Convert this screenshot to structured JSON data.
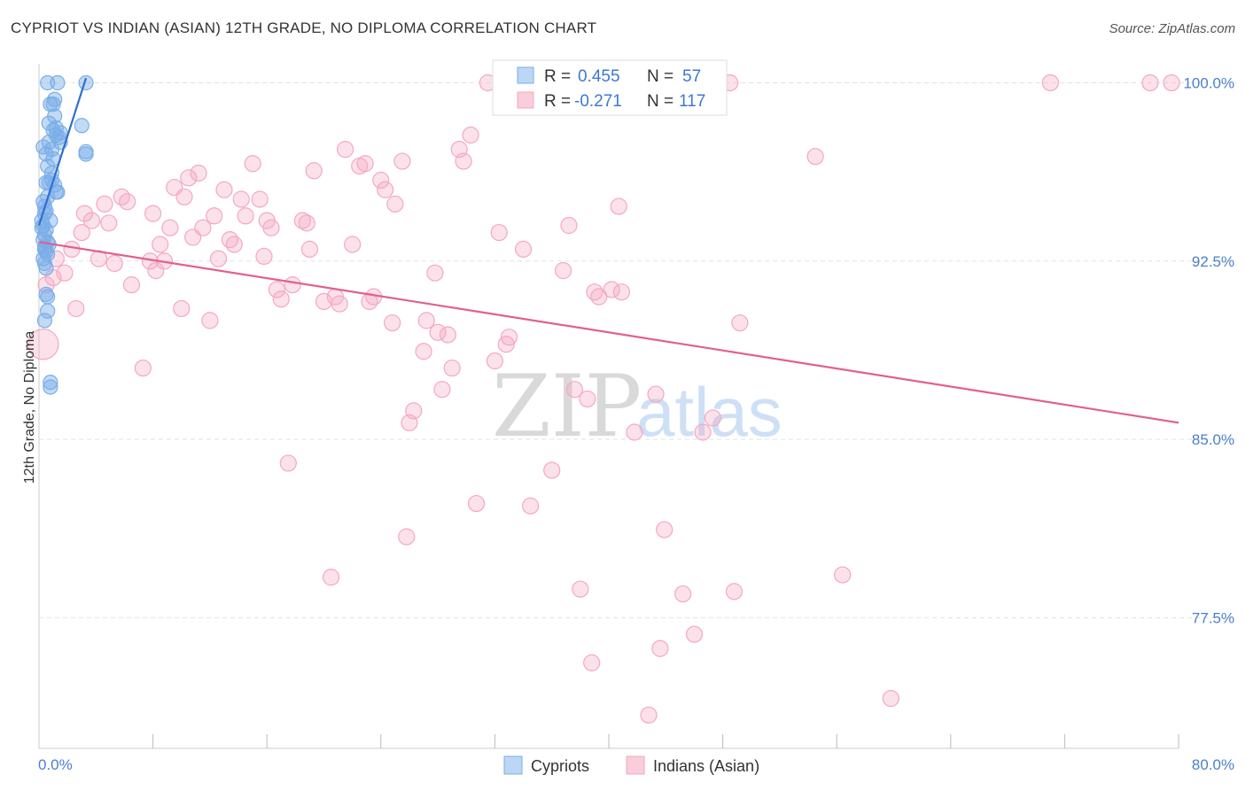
{
  "title": "CYPRIOT VS INDIAN (ASIAN) 12TH GRADE, NO DIPLOMA CORRELATION CHART",
  "source": "Source: ZipAtlas.com",
  "watermark": {
    "zip": "ZIP",
    "atlas": "atlas"
  },
  "chart_data": {
    "type": "scatter",
    "title": "CYPRIOT VS INDIAN (ASIAN) 12TH GRADE, NO DIPLOMA CORRELATION CHART",
    "xlabel": "",
    "ylabel": "12th Grade, No Diploma",
    "xlim": [
      0,
      80
    ],
    "ylim": [
      72,
      100.8
    ],
    "x_tick_labels": {
      "left": "0.0%",
      "right": "80.0%"
    },
    "y_ticks": [
      {
        "value": 100.0,
        "label": "100.0%"
      },
      {
        "value": 92.5,
        "label": "92.5%"
      },
      {
        "value": 85.0,
        "label": "85.0%"
      },
      {
        "value": 77.5,
        "label": "77.5%"
      }
    ],
    "grid": true,
    "legend_placement": "top-center",
    "series": [
      {
        "name": "Cypriots",
        "color": "#7aaee8",
        "line_color": "#2f6fd0",
        "r_label": "R =",
        "r_value": "0.455",
        "n_label": "N =",
        "n_value": "57",
        "trend": {
          "x": [
            0.0,
            3.3
          ],
          "y": [
            94.0,
            100.2
          ]
        },
        "points": [
          [
            0.6,
            100.0
          ],
          [
            1.3,
            100.0
          ],
          [
            3.3,
            100.0
          ],
          [
            0.8,
            99.1
          ],
          [
            1.0,
            99.1
          ],
          [
            1.1,
            98.6
          ],
          [
            3.0,
            98.2
          ],
          [
            1.0,
            98.0
          ],
          [
            1.2,
            97.8
          ],
          [
            1.4,
            97.7
          ],
          [
            0.7,
            97.5
          ],
          [
            1.5,
            97.5
          ],
          [
            0.9,
            97.2
          ],
          [
            0.5,
            97.0
          ],
          [
            3.3,
            97.1
          ],
          [
            3.3,
            97.0
          ],
          [
            0.6,
            96.5
          ],
          [
            0.9,
            96.2
          ],
          [
            0.5,
            95.8
          ],
          [
            0.7,
            95.8
          ],
          [
            1.1,
            95.7
          ],
          [
            1.2,
            95.4
          ],
          [
            1.3,
            95.4
          ],
          [
            0.3,
            95.0
          ],
          [
            0.5,
            94.6
          ],
          [
            0.4,
            94.5
          ],
          [
            0.2,
            94.2
          ],
          [
            0.3,
            94.0
          ],
          [
            0.5,
            93.8
          ],
          [
            0.4,
            93.6
          ],
          [
            0.3,
            93.4
          ],
          [
            0.6,
            93.3
          ],
          [
            0.4,
            93.1
          ],
          [
            0.6,
            92.8
          ],
          [
            0.3,
            92.6
          ],
          [
            0.4,
            92.4
          ],
          [
            0.5,
            92.2
          ],
          [
            0.5,
            91.1
          ],
          [
            0.6,
            91.0
          ],
          [
            0.6,
            90.4
          ],
          [
            0.4,
            90.0
          ],
          [
            0.8,
            87.4
          ],
          [
            0.8,
            87.2
          ],
          [
            0.2,
            93.9
          ],
          [
            0.7,
            98.3
          ],
          [
            1.0,
            96.8
          ],
          [
            0.8,
            94.2
          ],
          [
            0.4,
            93.0
          ],
          [
            1.2,
            98.1
          ],
          [
            0.6,
            95.2
          ],
          [
            0.9,
            95.9
          ],
          [
            0.3,
            97.3
          ],
          [
            1.1,
            99.3
          ],
          [
            0.5,
            92.9
          ],
          [
            0.7,
            93.2
          ],
          [
            0.4,
            94.8
          ],
          [
            1.5,
            97.9
          ]
        ]
      },
      {
        "name": "Indians (Asian)",
        "color": "#f4a8c2",
        "line_color": "#e0608f",
        "r_label": "R =",
        "r_value": "-0.271",
        "n_label": "N =",
        "n_value": "117",
        "trend": {
          "x": [
            0.0,
            80.0
          ],
          "y": [
            93.3,
            85.7
          ]
        },
        "points": [
          [
            0.3,
            89.0
          ],
          [
            0.5,
            91.5
          ],
          [
            1.0,
            91.8
          ],
          [
            1.2,
            92.6
          ],
          [
            1.8,
            92.0
          ],
          [
            2.3,
            93.0
          ],
          [
            2.6,
            90.5
          ],
          [
            3.0,
            93.7
          ],
          [
            3.2,
            94.5
          ],
          [
            3.7,
            94.2
          ],
          [
            4.2,
            92.6
          ],
          [
            4.6,
            94.9
          ],
          [
            4.9,
            94.1
          ],
          [
            5.3,
            92.4
          ],
          [
            5.8,
            95.2
          ],
          [
            6.2,
            95.0
          ],
          [
            6.5,
            91.5
          ],
          [
            7.3,
            88.0
          ],
          [
            7.8,
            92.5
          ],
          [
            8.0,
            94.5
          ],
          [
            8.2,
            92.1
          ],
          [
            8.5,
            93.2
          ],
          [
            8.8,
            92.5
          ],
          [
            9.2,
            93.9
          ],
          [
            9.5,
            95.6
          ],
          [
            10.0,
            90.5
          ],
          [
            10.2,
            95.2
          ],
          [
            10.5,
            96.0
          ],
          [
            10.8,
            93.5
          ],
          [
            11.2,
            96.2
          ],
          [
            11.5,
            93.9
          ],
          [
            12.0,
            90.0
          ],
          [
            12.3,
            94.4
          ],
          [
            12.6,
            92.6
          ],
          [
            13.0,
            95.5
          ],
          [
            13.4,
            93.4
          ],
          [
            13.7,
            93.2
          ],
          [
            14.2,
            95.1
          ],
          [
            14.5,
            94.4
          ],
          [
            15.0,
            96.6
          ],
          [
            15.5,
            95.1
          ],
          [
            16.0,
            94.2
          ],
          [
            16.3,
            93.9
          ],
          [
            16.7,
            91.3
          ],
          [
            17.0,
            90.9
          ],
          [
            17.5,
            84.0
          ],
          [
            17.8,
            91.5
          ],
          [
            18.5,
            94.2
          ],
          [
            18.8,
            94.1
          ],
          [
            19.0,
            93.0
          ],
          [
            19.3,
            96.3
          ],
          [
            20.0,
            90.8
          ],
          [
            20.5,
            79.2
          ],
          [
            20.8,
            91.0
          ],
          [
            21.1,
            90.7
          ],
          [
            21.5,
            97.2
          ],
          [
            22.0,
            93.2
          ],
          [
            22.5,
            96.5
          ],
          [
            22.9,
            96.6
          ],
          [
            23.2,
            90.8
          ],
          [
            23.5,
            91.0
          ],
          [
            24.0,
            95.9
          ],
          [
            24.3,
            95.5
          ],
          [
            25.0,
            94.9
          ],
          [
            25.5,
            96.7
          ],
          [
            25.8,
            80.9
          ],
          [
            26.0,
            85.7
          ],
          [
            26.3,
            86.2
          ],
          [
            27.0,
            88.7
          ],
          [
            27.2,
            90.0
          ],
          [
            27.8,
            92.0
          ],
          [
            28.0,
            89.5
          ],
          [
            28.3,
            87.1
          ],
          [
            28.7,
            89.4
          ],
          [
            29.0,
            88.0
          ],
          [
            29.5,
            97.2
          ],
          [
            29.8,
            96.7
          ],
          [
            30.3,
            97.8
          ],
          [
            30.7,
            82.3
          ],
          [
            31.5,
            100.0
          ],
          [
            32.0,
            88.3
          ],
          [
            32.3,
            93.7
          ],
          [
            32.8,
            89.0
          ],
          [
            33.0,
            89.3
          ],
          [
            34.0,
            93.0
          ],
          [
            34.5,
            82.2
          ],
          [
            36.0,
            83.7
          ],
          [
            36.8,
            92.1
          ],
          [
            37.2,
            94.0
          ],
          [
            37.6,
            87.1
          ],
          [
            38.0,
            78.7
          ],
          [
            38.5,
            86.7
          ],
          [
            38.8,
            75.6
          ],
          [
            39.0,
            91.2
          ],
          [
            39.3,
            91.0
          ],
          [
            40.2,
            91.3
          ],
          [
            40.7,
            94.8
          ],
          [
            40.9,
            91.2
          ],
          [
            41.8,
            85.3
          ],
          [
            42.8,
            73.4
          ],
          [
            43.3,
            86.9
          ],
          [
            43.6,
            76.2
          ],
          [
            43.9,
            81.2
          ],
          [
            45.2,
            78.5
          ],
          [
            46.0,
            76.8
          ],
          [
            46.6,
            85.3
          ],
          [
            47.3,
            85.9
          ],
          [
            48.8,
            78.6
          ],
          [
            49.2,
            89.9
          ],
          [
            54.5,
            96.9
          ],
          [
            56.4,
            79.3
          ],
          [
            59.8,
            74.1
          ],
          [
            71.0,
            100.0
          ],
          [
            78.0,
            100.0
          ],
          [
            79.5,
            100.0
          ],
          [
            48.5,
            100.0
          ],
          [
            33.5,
            100.0
          ],
          [
            24.8,
            89.9
          ],
          [
            15.8,
            92.7
          ]
        ]
      }
    ]
  }
}
